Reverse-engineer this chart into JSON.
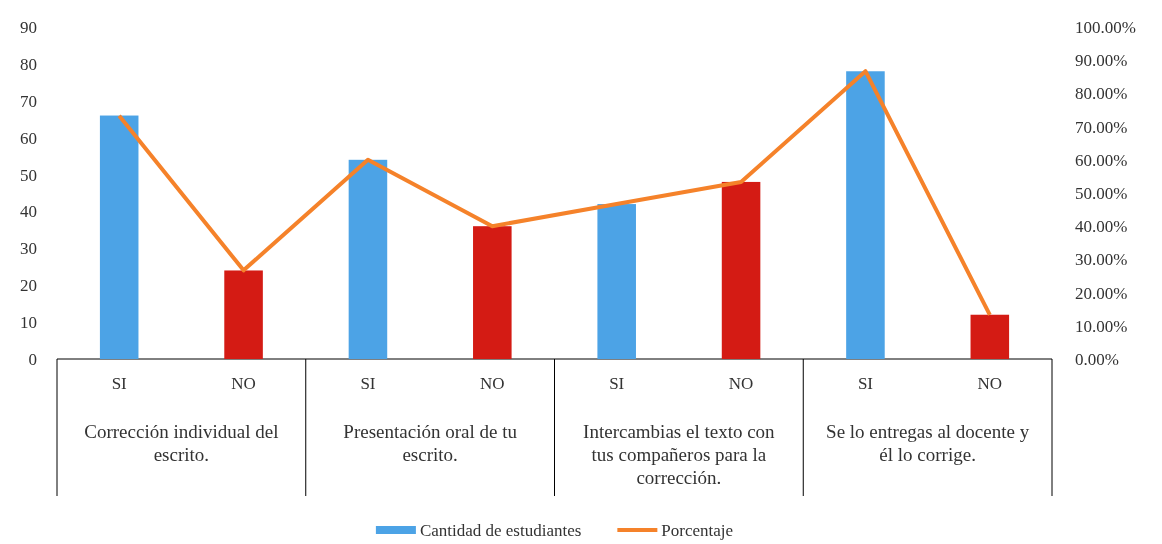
{
  "chart_data": {
    "type": "bar",
    "categories": [
      "SI",
      "NO",
      "SI",
      "NO",
      "SI",
      "NO",
      "SI",
      "NO"
    ],
    "series": [
      {
        "name": "Cantidad de estudiantes",
        "color": "#4ca3e6",
        "colors": [
          "#4ca3e6",
          "#d41b14",
          "#4ca3e6",
          "#d41b14",
          "#4ca3e6",
          "#d41b14",
          "#4ca3e6",
          "#d41b14"
        ],
        "values": [
          66,
          24,
          54,
          36,
          42,
          48,
          78,
          12
        ]
      },
      {
        "name": "Porcentaje",
        "type": "line",
        "axis": "y2",
        "color": "#f5822a",
        "values": [
          73.3,
          26.7,
          60,
          40,
          46.7,
          53.3,
          86.7,
          13.3
        ]
      }
    ],
    "annotations": [
      "Corrección individual del escrito.",
      "Presentación oral de tu escrito.",
      "Intercambias el texto con tus compañeros para la corrección.",
      "Se lo entregas al docente y él lo corrige."
    ],
    "ylim": [
      0,
      90
    ],
    "yticks": [
      0,
      10,
      20,
      30,
      40,
      50,
      60,
      70,
      80,
      90
    ],
    "y2lim": [
      0,
      100
    ],
    "y2ticks": [
      {
        "value": 0,
        "label": "0.00%"
      },
      {
        "value": 10,
        "label": "10.00%"
      },
      {
        "value": 20,
        "label": "20.00%"
      },
      {
        "value": 30,
        "label": "30.00%"
      },
      {
        "value": 40,
        "label": "40.00%"
      },
      {
        "value": 50,
        "label": "50.00%"
      },
      {
        "value": 60,
        "label": "60.00%"
      },
      {
        "value": 70,
        "label": "70.00%"
      },
      {
        "value": 80,
        "label": "80.00%"
      },
      {
        "value": 90,
        "label": "90.00%"
      },
      {
        "value": 100,
        "label": "100.00%"
      }
    ],
    "grid": false,
    "legend": "bottom",
    "marker": "none",
    "line_style": "solid"
  }
}
